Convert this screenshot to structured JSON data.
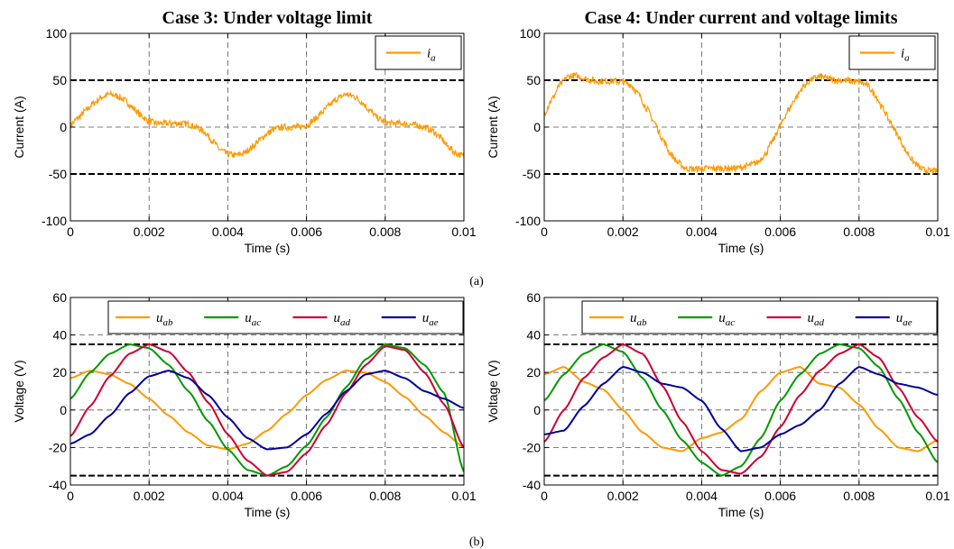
{
  "figure": {
    "panel_labels": [
      "(a)",
      "(b)"
    ]
  },
  "chart_data": [
    {
      "type": "line",
      "title": "Case 3: Under voltage limit",
      "xlabel": "Time (s)",
      "ylabel": "Current (A)",
      "xlim": [
        0,
        0.01
      ],
      "ylim": [
        -100,
        100
      ],
      "xticks": [
        0,
        0.002,
        0.004,
        0.006,
        0.008,
        0.01
      ],
      "xtick_labels": [
        "0",
        "0.002",
        "0.004",
        "0.006",
        "0.008",
        "0.01"
      ],
      "yticks": [
        -100,
        -50,
        0,
        50,
        100
      ],
      "ytick_labels": [
        "-100",
        "-50",
        "0",
        "50",
        "100"
      ],
      "grid": true,
      "legend_position": "top-right",
      "reference_lines": [
        50,
        -50
      ],
      "series": [
        {
          "name": "i",
          "name_sub": "a",
          "color": "#FF9900",
          "x": [
            0,
            0.0002,
            0.0004,
            0.0006,
            0.0008,
            0.001,
            0.0012,
            0.0014,
            0.0016,
            0.0018,
            0.002,
            0.0022,
            0.0024,
            0.0026,
            0.0028,
            0.003,
            0.0032,
            0.0034,
            0.0036,
            0.0038,
            0.004,
            0.0042,
            0.0044,
            0.0046,
            0.0048,
            0.005,
            0.0052,
            0.0054,
            0.0056,
            0.0058,
            0.006,
            0.0062,
            0.0064,
            0.0066,
            0.0068,
            0.007,
            0.0072,
            0.0074,
            0.0076,
            0.0078,
            0.008,
            0.0082,
            0.0084,
            0.0086,
            0.0088,
            0.009,
            0.0092,
            0.0094,
            0.0096,
            0.0098,
            0.01
          ],
          "y": [
            2,
            10,
            18,
            26,
            32,
            35,
            33,
            28,
            20,
            12,
            6,
            4,
            4,
            4,
            4,
            3,
            0,
            -5,
            -14,
            -24,
            -29,
            -30,
            -28,
            -22,
            -14,
            -7,
            -2,
            0,
            0,
            0,
            2,
            8,
            16,
            24,
            31,
            35,
            33,
            27,
            18,
            10,
            5,
            4,
            4,
            3,
            2,
            0,
            -4,
            -11,
            -21,
            -28,
            -31
          ]
        }
      ]
    },
    {
      "type": "line",
      "title": "Case 4: Under current and voltage limits",
      "xlabel": "Time (s)",
      "ylabel": "Current (A)",
      "xlim": [
        0,
        0.01
      ],
      "ylim": [
        -100,
        100
      ],
      "xticks": [
        0,
        0.002,
        0.004,
        0.006,
        0.008,
        0.01
      ],
      "xtick_labels": [
        "0",
        "0.002",
        "0.004",
        "0.006",
        "0.008",
        "0.01"
      ],
      "yticks": [
        -100,
        -50,
        0,
        50,
        100
      ],
      "ytick_labels": [
        "-100",
        "-50",
        "0",
        "50",
        "100"
      ],
      "grid": true,
      "legend_position": "top-right",
      "reference_lines": [
        50,
        -50
      ],
      "series": [
        {
          "name": "i",
          "name_sub": "a",
          "color": "#FF9900",
          "x": [
            0,
            0.0002,
            0.0004,
            0.0006,
            0.0008,
            0.001,
            0.0012,
            0.0014,
            0.0016,
            0.0018,
            0.002,
            0.0022,
            0.0024,
            0.0026,
            0.0028,
            0.003,
            0.0032,
            0.0034,
            0.0036,
            0.0038,
            0.004,
            0.0042,
            0.0044,
            0.0046,
            0.0048,
            0.005,
            0.0052,
            0.0054,
            0.0056,
            0.0058,
            0.006,
            0.0062,
            0.0064,
            0.0066,
            0.0068,
            0.007,
            0.0072,
            0.0074,
            0.0076,
            0.0078,
            0.008,
            0.0082,
            0.0084,
            0.0086,
            0.0088,
            0.009,
            0.0092,
            0.0094,
            0.0096,
            0.0098,
            0.01
          ],
          "y": [
            15,
            30,
            45,
            54,
            55,
            52,
            50,
            49,
            49,
            49,
            48,
            45,
            35,
            20,
            5,
            -12,
            -28,
            -38,
            -44,
            -45,
            -44,
            -44,
            -44,
            -44,
            -44,
            -43,
            -41,
            -38,
            -30,
            -15,
            2,
            18,
            32,
            44,
            51,
            54,
            52,
            50,
            50,
            49,
            48,
            45,
            35,
            20,
            5,
            -10,
            -26,
            -38,
            -45,
            -47,
            -47
          ]
        }
      ]
    },
    {
      "type": "line",
      "title": "",
      "xlabel": "Time (s)",
      "ylabel": "Voltage (V)",
      "xlim": [
        0,
        0.01
      ],
      "ylim": [
        -40,
        60
      ],
      "xticks": [
        0,
        0.002,
        0.004,
        0.006,
        0.008,
        0.01
      ],
      "xtick_labels": [
        "0",
        "0.002",
        "0.004",
        "0.006",
        "0.008",
        "0.01"
      ],
      "yticks": [
        -40,
        -20,
        0,
        20,
        40,
        60
      ],
      "ytick_labels": [
        "-40",
        "-20",
        "0",
        "20",
        "40",
        "60"
      ],
      "grid": true,
      "legend_position": "top",
      "reference_lines": [
        35,
        -35
      ],
      "series": [
        {
          "name": "u",
          "name_sub": "ab",
          "color": "#FF9900",
          "x": [
            0,
            0.0005,
            0.001,
            0.0015,
            0.002,
            0.0025,
            0.003,
            0.0035,
            0.004,
            0.0045,
            0.005,
            0.0055,
            0.006,
            0.0065,
            0.007,
            0.0075,
            0.008,
            0.0085,
            0.009,
            0.0095,
            0.01
          ],
          "y": [
            17,
            21,
            19,
            14,
            6,
            -3,
            -12,
            -19,
            -21,
            -18,
            -11,
            -2,
            8,
            16,
            21,
            20,
            15,
            7,
            -3,
            -12,
            -20
          ]
        },
        {
          "name": "u",
          "name_sub": "ac",
          "color": "#009900",
          "x": [
            0,
            0.0005,
            0.001,
            0.0015,
            0.002,
            0.0025,
            0.003,
            0.0035,
            0.004,
            0.0045,
            0.005,
            0.0055,
            0.006,
            0.0065,
            0.007,
            0.0075,
            0.008,
            0.0085,
            0.009,
            0.0095,
            0.01
          ],
          "y": [
            6,
            20,
            30,
            35,
            33,
            24,
            10,
            -6,
            -21,
            -32,
            -35,
            -30,
            -19,
            -4,
            12,
            27,
            35,
            33,
            24,
            9,
            -33
          ]
        },
        {
          "name": "u",
          "name_sub": "ad",
          "color": "#CC0033",
          "x": [
            0,
            0.0005,
            0.001,
            0.0015,
            0.002,
            0.0025,
            0.003,
            0.0035,
            0.004,
            0.0045,
            0.005,
            0.0055,
            0.006,
            0.0065,
            0.007,
            0.0075,
            0.008,
            0.0085,
            0.009,
            0.0095,
            0.01
          ],
          "y": [
            -14,
            2,
            18,
            30,
            35,
            31,
            20,
            4,
            -13,
            -27,
            -35,
            -33,
            -23,
            -8,
            9,
            24,
            34,
            32,
            20,
            3,
            -20
          ]
        },
        {
          "name": "u",
          "name_sub": "ae",
          "color": "#000099",
          "x": [
            0,
            0.0005,
            0.001,
            0.0015,
            0.002,
            0.0025,
            0.003,
            0.0035,
            0.004,
            0.0045,
            0.005,
            0.0055,
            0.006,
            0.0065,
            0.007,
            0.0075,
            0.008,
            0.0085,
            0.009,
            0.0095,
            0.01
          ],
          "y": [
            -18,
            -13,
            -3,
            9,
            18,
            21,
            17,
            8,
            -4,
            -15,
            -21,
            -20,
            -13,
            -2,
            10,
            19,
            21,
            17,
            10,
            6,
            1
          ]
        }
      ]
    },
    {
      "type": "line",
      "title": "",
      "xlabel": "Time (s)",
      "ylabel": "Voltage (V)",
      "xlim": [
        0,
        0.01
      ],
      "ylim": [
        -40,
        60
      ],
      "xticks": [
        0,
        0.002,
        0.004,
        0.006,
        0.008,
        0.01
      ],
      "xtick_labels": [
        "0",
        "0.002",
        "0.004",
        "0.006",
        "0.008",
        "0.01"
      ],
      "yticks": [
        -40,
        -20,
        0,
        20,
        40,
        60
      ],
      "ytick_labels": [
        "-40",
        "-20",
        "0",
        "20",
        "40",
        "60"
      ],
      "grid": true,
      "legend_position": "top",
      "reference_lines": [
        35,
        -35
      ],
      "series": [
        {
          "name": "u",
          "name_sub": "ab",
          "color": "#FF9900",
          "x": [
            0,
            0.0005,
            0.001,
            0.0015,
            0.002,
            0.0025,
            0.003,
            0.0035,
            0.004,
            0.0045,
            0.005,
            0.0055,
            0.006,
            0.0065,
            0.007,
            0.0075,
            0.008,
            0.0085,
            0.009,
            0.0095,
            0.01
          ],
          "y": [
            19,
            23,
            15,
            11,
            0,
            -12,
            -20,
            -22,
            -15,
            -12,
            -5,
            10,
            20,
            23,
            14,
            12,
            3,
            -10,
            -20,
            -22,
            -16
          ]
        },
        {
          "name": "u",
          "name_sub": "ac",
          "color": "#009900",
          "x": [
            0,
            0.0005,
            0.001,
            0.0015,
            0.002,
            0.0025,
            0.003,
            0.0035,
            0.004,
            0.0045,
            0.005,
            0.0055,
            0.006,
            0.0065,
            0.007,
            0.0075,
            0.008,
            0.0085,
            0.009,
            0.0095,
            0.01
          ],
          "y": [
            5,
            19,
            30,
            35,
            31,
            17,
            0,
            -16,
            -28,
            -35,
            -30,
            -15,
            5,
            19,
            30,
            35,
            33,
            23,
            6,
            -12,
            -28
          ]
        },
        {
          "name": "u",
          "name_sub": "ad",
          "color": "#CC0033",
          "x": [
            0,
            0.0005,
            0.001,
            0.0015,
            0.002,
            0.0025,
            0.003,
            0.0035,
            0.004,
            0.0045,
            0.005,
            0.0055,
            0.006,
            0.0065,
            0.007,
            0.0075,
            0.008,
            0.0085,
            0.009,
            0.0095,
            0.01
          ],
          "y": [
            -17,
            0,
            17,
            28,
            35,
            30,
            13,
            -6,
            -22,
            -32,
            -34,
            -25,
            -9,
            8,
            21,
            30,
            35,
            28,
            12,
            -4,
            -17
          ]
        },
        {
          "name": "u",
          "name_sub": "ae",
          "color": "#000099",
          "x": [
            0,
            0.0005,
            0.001,
            0.0015,
            0.002,
            0.0025,
            0.003,
            0.0035,
            0.004,
            0.0045,
            0.005,
            0.0055,
            0.006,
            0.0065,
            0.007,
            0.0075,
            0.008,
            0.0085,
            0.009,
            0.0095,
            0.01
          ],
          "y": [
            -13,
            -11,
            2,
            14,
            23,
            20,
            14,
            12,
            5,
            -10,
            -22,
            -20,
            -13,
            -8,
            0,
            14,
            23,
            19,
            14,
            12,
            8
          ]
        }
      ]
    }
  ]
}
